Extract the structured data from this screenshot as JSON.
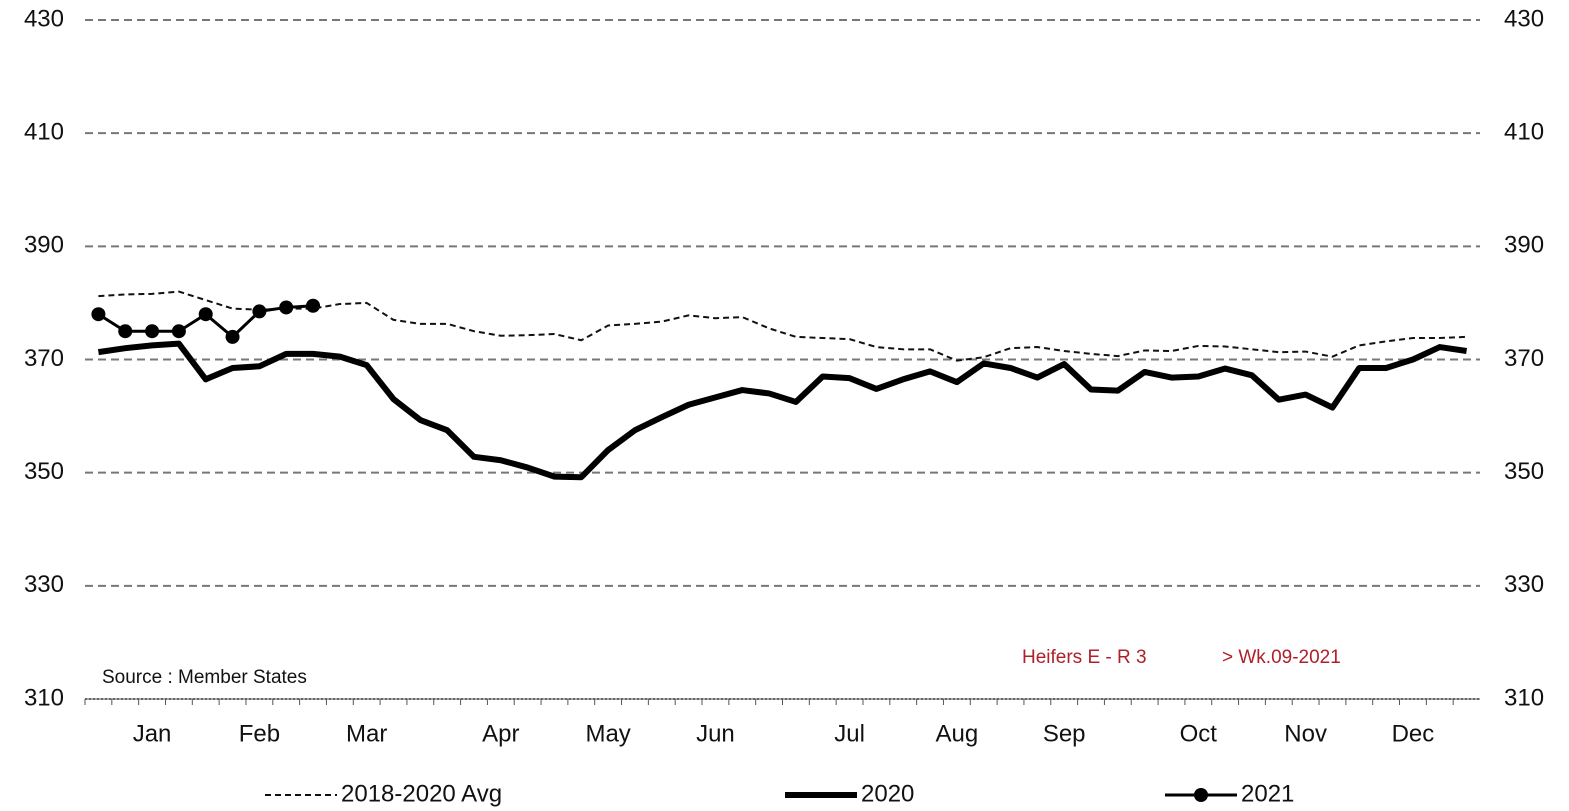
{
  "chart_data": {
    "type": "line",
    "source": "Source : Member States",
    "annotations": [
      "Heifers E - R 3",
      "> Wk.09-2021"
    ],
    "categories": [
      null,
      null,
      "Jan",
      null,
      null,
      null,
      "Feb",
      null,
      null,
      null,
      "Mar",
      null,
      null,
      null,
      null,
      "Apr",
      null,
      null,
      null,
      "May",
      null,
      null,
      null,
      "Jun",
      null,
      null,
      null,
      null,
      "Jul",
      null,
      null,
      null,
      "Aug",
      null,
      null,
      null,
      "Sep",
      null,
      null,
      null,
      null,
      "Oct",
      null,
      null,
      null,
      "Nov",
      null,
      null,
      null,
      "Dec",
      null,
      null
    ],
    "ylim": [
      310,
      430
    ],
    "yticks": [
      310,
      330,
      350,
      370,
      390,
      410,
      430
    ],
    "grid": true,
    "legend": "bottom",
    "series": [
      {
        "name": "2018-2020 Avg",
        "color": "#111111",
        "style": "dashed",
        "values": [
          381.2,
          381.5,
          381.6,
          382,
          380.5,
          379,
          378.8,
          379,
          379,
          379.8,
          380,
          377,
          376.3,
          376.3,
          375,
          374.2,
          374.3,
          374.5,
          373.4,
          376,
          376.3,
          376.7,
          377.8,
          377.3,
          377.5,
          375.5,
          374,
          373.8,
          373.6,
          372.2,
          371.8,
          371.8,
          369.8,
          370.4,
          372,
          372.2,
          371.5,
          371,
          370.6,
          371.6,
          371.5,
          372.4,
          372.3,
          371.8,
          371.3,
          371.4,
          370.5,
          372.5,
          373.2,
          373.8,
          373.8,
          374
        ]
      },
      {
        "name": "2020",
        "color": "#000000",
        "style": "thick",
        "values": [
          371.3,
          372,
          372.5,
          372.8,
          366.5,
          368.5,
          368.8,
          371,
          371,
          370.5,
          369,
          363,
          359.3,
          357.5,
          352.8,
          352.2,
          350.9,
          349.3,
          349.2,
          354,
          357.5,
          359.8,
          362,
          363.3,
          364.6,
          364,
          362.5,
          367,
          366.7,
          364.8,
          366.5,
          367.9,
          366,
          369.3,
          368.5,
          366.8,
          369.2,
          364.7,
          364.5,
          367.8,
          366.8,
          367,
          368.4,
          367.2,
          362.9,
          363.8,
          361.5,
          368.5,
          368.5,
          370,
          372.2,
          371.5
        ]
      },
      {
        "name": "2021",
        "color": "#000000",
        "style": "markers",
        "values": [
          378,
          375,
          375,
          375,
          378,
          374,
          378.5,
          379.2,
          379.5,
          null,
          null,
          null,
          null,
          null,
          null,
          null,
          null,
          null,
          null,
          null,
          null,
          null,
          null,
          null,
          null,
          null,
          null,
          null,
          null,
          null,
          null,
          null,
          null,
          null,
          null,
          null,
          null,
          null,
          null,
          null,
          null,
          null,
          null,
          null,
          null,
          null,
          null,
          null,
          null,
          null,
          null,
          null
        ]
      }
    ]
  }
}
